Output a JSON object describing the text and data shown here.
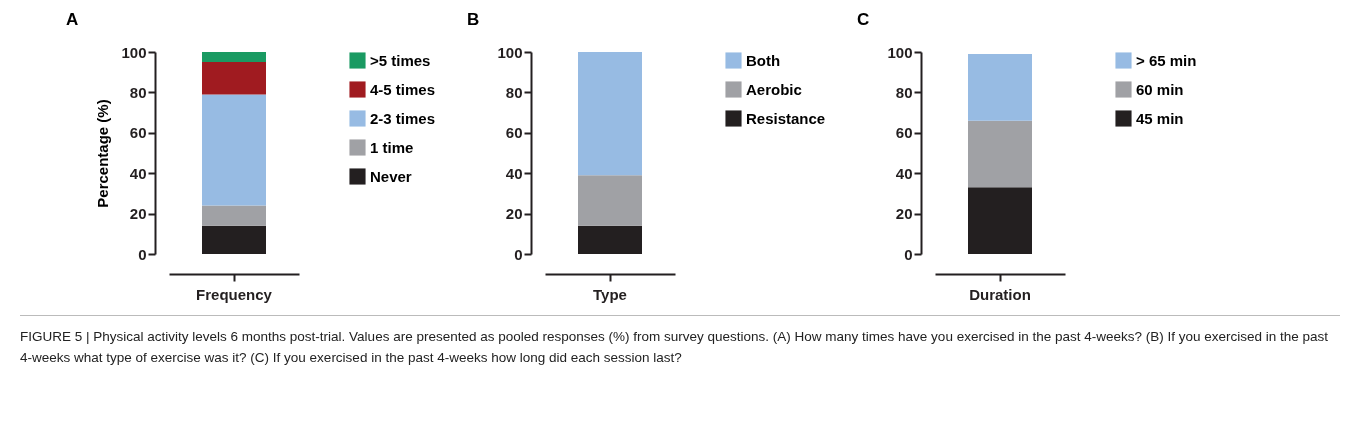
{
  "chart_data": [
    {
      "type": "bar",
      "title": "A",
      "ylabel": "Percentage (%)",
      "categories": [
        "Frequency"
      ],
      "stacked": true,
      "ylim": [
        0,
        100
      ],
      "yticks": [
        0,
        20,
        40,
        60,
        80,
        100
      ],
      "grid": false,
      "legend": "right",
      "series": [
        {
          "name": "Never",
          "color": "#231f20",
          "values": [
            14
          ]
        },
        {
          "name": "1 time",
          "color": "#a0a1a5",
          "values": [
            10
          ]
        },
        {
          "name": "2-3 times",
          "color": "#97bbe3",
          "values": [
            55
          ]
        },
        {
          "name": "4-5 times",
          "color": "#a01b20",
          "values": [
            16
          ]
        },
        {
          "name": ">5 times",
          "color": "#1a9a62",
          "values": [
            5
          ]
        }
      ],
      "annotations": [
        "FIGURE 5 | Physical activity levels 6 months post-trial. Values are presented as pooled responses (%) from survey questions. (A) How many times have you exercised in the past 4-weeks? (B) If you exercised in the past 4-weeks what type of exercise was it? (C) If you exercised in the past 4-weeks how long did each session last?"
      ]
    },
    {
      "type": "bar",
      "title": "B",
      "categories": [
        "Type"
      ],
      "stacked": true,
      "ylim": [
        0,
        100
      ],
      "yticks": [
        0,
        20,
        40,
        60,
        80,
        100
      ],
      "grid": false,
      "legend": "right",
      "series": [
        {
          "name": "Resistance",
          "color": "#231f20",
          "values": [
            14
          ]
        },
        {
          "name": "Aerobic",
          "color": "#a0a1a5",
          "values": [
            25
          ]
        },
        {
          "name": "Both",
          "color": "#97bbe3",
          "values": [
            61
          ]
        }
      ]
    },
    {
      "type": "bar",
      "title": "C",
      "categories": [
        "Duration"
      ],
      "stacked": true,
      "ylim": [
        0,
        100
      ],
      "yticks": [
        0,
        20,
        40,
        60,
        80,
        100
      ],
      "grid": false,
      "legend": "right",
      "series": [
        {
          "name": "45 min",
          "color": "#231f20",
          "values": [
            33
          ]
        },
        {
          "name": "60 min",
          "color": "#a0a1a5",
          "values": [
            33
          ]
        },
        {
          "name": "> 65 min",
          "color": "#97bbe3",
          "values": [
            33
          ]
        }
      ]
    }
  ]
}
